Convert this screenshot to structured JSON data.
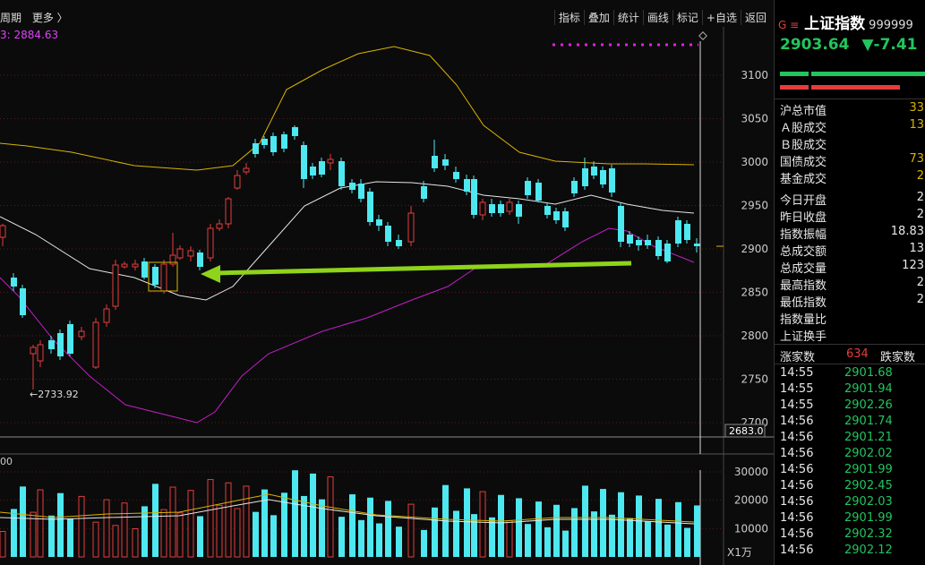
{
  "toolbar": {
    "period": "周期",
    "more": "更多 〉",
    "buttons": [
      "指标",
      "叠加",
      "统计",
      "画线",
      "标记",
      "+自选",
      "返回"
    ]
  },
  "ma_label": "3: 2884.63",
  "vol_label": "00",
  "price_axis": [
    "3100",
    "3050",
    "3000",
    "2950",
    "2900",
    "2850",
    "2800",
    "2750",
    "2700"
  ],
  "price_tag": "2683.0",
  "low_annotation": "←2733.92",
  "vol_axis": [
    "30000",
    "20000",
    "10000"
  ],
  "vol_unit": "X1万",
  "colors": {
    "up": "#e63c3c",
    "down": "#4ee8f0",
    "ma_white": "#e6e6e6",
    "ma_yellow": "#d8b400",
    "ma_magenta": "#c020c8",
    "arrow": "#8fd31a",
    "dotted": "#e020e0"
  },
  "panel": {
    "g_label": "G ≡",
    "name": "上证指数",
    "code": "999999",
    "price": "2903.64",
    "change": "▼-7.41",
    "dash": "-",
    "rows": [
      {
        "label": "沪总市值",
        "value": "33"
      },
      {
        "label": "Ａ股成交",
        "value": "13"
      },
      {
        "label": "Ｂ股成交",
        "value": ""
      },
      {
        "label": "国债成交",
        "value": "73"
      },
      {
        "label": "基金成交",
        "value": "2"
      },
      {
        "label": "今日开盘",
        "value": "2"
      },
      {
        "label": "昨日收盘",
        "value": "2"
      },
      {
        "label": "指数振幅",
        "value": "18.83"
      },
      {
        "label": "总成交额",
        "value": "13"
      },
      {
        "label": "总成交量",
        "value": "123"
      },
      {
        "label": "最高指数",
        "value": "2"
      },
      {
        "label": "最低指数",
        "value": "2"
      },
      {
        "label": "指数量比",
        "value": ""
      },
      {
        "label": "上证换手",
        "value": ""
      }
    ],
    "rise_fall": {
      "rise_label": "涨家数",
      "rise_value": "634",
      "fall_label": "跌家数"
    },
    "ticks": [
      {
        "time": "14:55",
        "price": "2901.68"
      },
      {
        "time": "14:55",
        "price": "2901.94"
      },
      {
        "time": "14:55",
        "price": "2902.26"
      },
      {
        "time": "14:56",
        "price": "2901.74"
      },
      {
        "time": "14:56",
        "price": "2901.21"
      },
      {
        "time": "14:56",
        "price": "2902.02"
      },
      {
        "time": "14:56",
        "price": "2901.99"
      },
      {
        "time": "14:56",
        "price": "2902.45"
      },
      {
        "time": "14:56",
        "price": "2902.03"
      },
      {
        "time": "14:56",
        "price": "2901.99"
      },
      {
        "time": "14:56",
        "price": "2902.32"
      },
      {
        "time": "14:56",
        "price": "2902.12"
      }
    ]
  }
}
